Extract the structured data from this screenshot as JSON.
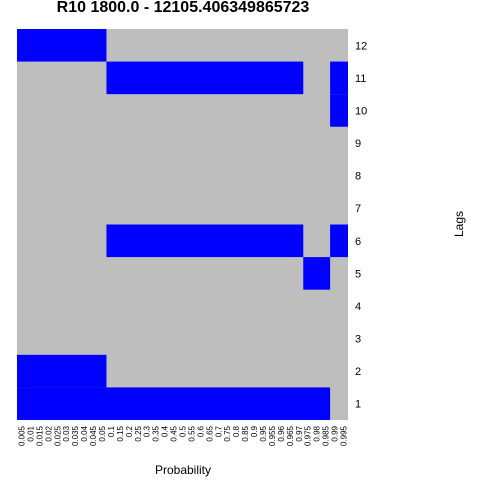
{
  "chart_data": {
    "type": "heatmap",
    "title": "R10 1800.0 - 12105.406349865723",
    "xlabel": "Probability",
    "ylabel": "Lags",
    "x_categories": [
      "0.005",
      "0.01",
      "0.015",
      "0.02",
      "0.025",
      "0.03",
      "0.035",
      "0.04",
      "0.045",
      "0.05",
      "0.1",
      "0.15",
      "0.2",
      "0.25",
      "0.3",
      "0.35",
      "0.4",
      "0.45",
      "0.5",
      "0.55",
      "0.6",
      "0.65",
      "0.7",
      "0.75",
      "0.8",
      "0.85",
      "0.9",
      "0.95",
      "0.955",
      "0.96",
      "0.965",
      "0.97",
      "0.975",
      "0.98",
      "0.985",
      "0.99",
      "0.995"
    ],
    "y_categories": [
      "1",
      "2",
      "3",
      "4",
      "5",
      "6",
      "7",
      "8",
      "9",
      "10",
      "11",
      "12"
    ],
    "colors": {
      "selected": "#0000ff",
      "not_selected": "#bebebe"
    },
    "selected_ranges": {
      "1": [
        [
          0,
          34
        ]
      ],
      "2": [
        [
          0,
          9
        ]
      ],
      "3": [],
      "4": [],
      "5": [
        [
          32,
          34
        ]
      ],
      "6": [
        [
          10,
          31
        ],
        [
          35,
          36
        ]
      ],
      "7": [],
      "8": [],
      "9": [],
      "10": [
        [
          35,
          36
        ]
      ],
      "11": [
        [
          10,
          31
        ],
        [
          35,
          36
        ]
      ],
      "12": [
        [
          0,
          9
        ]
      ]
    }
  }
}
